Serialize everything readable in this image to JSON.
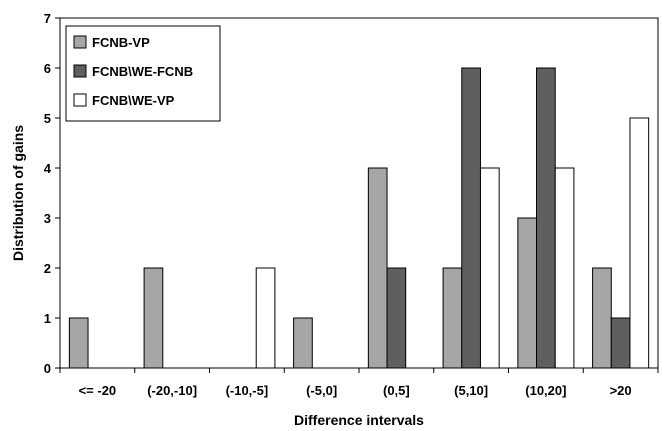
{
  "chart_data": {
    "type": "bar",
    "title": "",
    "xlabel": "Difference intervals",
    "ylabel": "Distribution of gains",
    "ylim": [
      0,
      7
    ],
    "yticks": [
      "0",
      "1",
      "2",
      "3",
      "4",
      "5",
      "6",
      "7"
    ],
    "grid": false,
    "legend_position": "top-left",
    "categories": [
      "<= -20",
      "(-20,-10]",
      "(-10,-5]",
      "(-5,0]",
      "(0,5]",
      "(5,10]",
      "(10,20]",
      ">20"
    ],
    "series": [
      {
        "name": "FCNB-VP",
        "color": "#a6a6a6",
        "values": [
          1,
          2,
          0,
          1,
          4,
          2,
          3,
          2
        ]
      },
      {
        "name": "FCNB\\WE-FCNB",
        "color": "#5f5f5f",
        "values": [
          0,
          0,
          0,
          0,
          2,
          6,
          6,
          1
        ]
      },
      {
        "name": "FCNB\\WE-VP",
        "color": "#ffffff",
        "values": [
          0,
          0,
          2,
          0,
          0,
          4,
          4,
          5
        ]
      }
    ]
  }
}
